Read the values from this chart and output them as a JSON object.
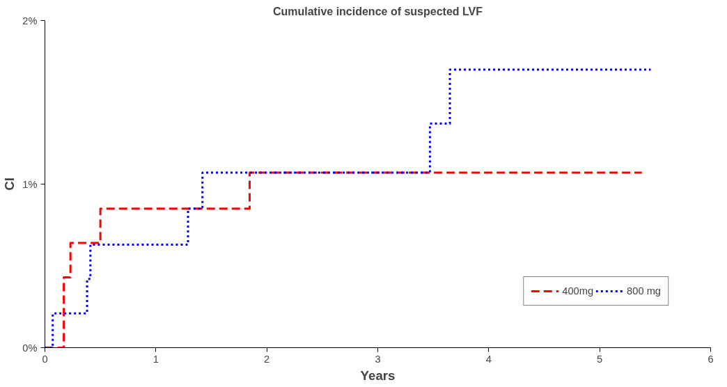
{
  "chart_data": {
    "type": "step",
    "title": "Cumulative incidence of suspected LVF",
    "xlabel": "Years",
    "ylabel": "CI",
    "xlim": [
      0,
      6
    ],
    "xticks": [
      0,
      1,
      2,
      3,
      4,
      5,
      6
    ],
    "ylim": [
      0,
      2
    ],
    "yticks": [
      {
        "value": 0,
        "label": "0%"
      },
      {
        "value": 1,
        "label": "1%"
      },
      {
        "value": 2,
        "label": "2%"
      }
    ],
    "grid": false,
    "legend": "bottom right",
    "series": [
      {
        "name": "400mg",
        "color": "#ff0000",
        "line_style": "dashed",
        "x": [
          0,
          0.17,
          0.23,
          0.5,
          1.845,
          5.38
        ],
        "values": [
          0,
          0.43,
          0.64,
          0.85,
          1.07,
          1.07
        ]
      },
      {
        "name": "800 mg",
        "color": "#0000ff",
        "line_style": "dotted",
        "x": [
          0,
          0.07,
          0.38,
          0.41,
          1.29,
          1.42,
          3.47,
          3.65,
          5.46
        ],
        "values": [
          0,
          0.21,
          0.42,
          0.63,
          0.85,
          1.07,
          1.37,
          1.7,
          1.7
        ]
      }
    ]
  }
}
